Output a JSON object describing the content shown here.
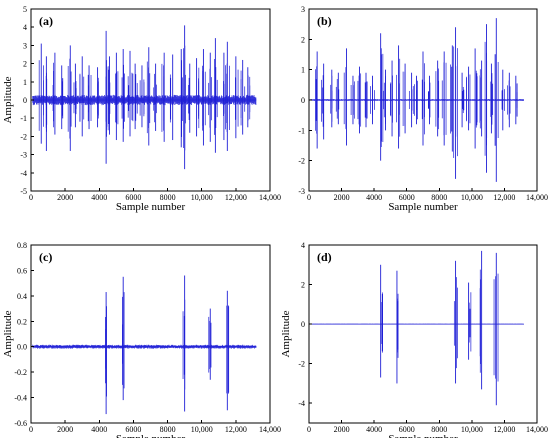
{
  "colors": {
    "signal": "#1f1fd6",
    "axis": "#000000",
    "background": "#ffffff"
  },
  "chart_data": [
    {
      "type": "line",
      "panel_label": "(a)",
      "xlabel": "Sample number",
      "ylabel": "Amplitude",
      "xlim": [
        0,
        14000
      ],
      "ylim": [
        -5,
        5
      ],
      "xticks": [
        0,
        2000,
        4000,
        6000,
        8000,
        10000,
        12000,
        14000
      ],
      "xtick_labels": [
        "0",
        "2000",
        "4000",
        "6000",
        "8000",
        "10,000",
        "12,000",
        "14,000"
      ],
      "yticks": [
        -5,
        -4,
        -3,
        -2,
        -1,
        0,
        1,
        2,
        3,
        4,
        5
      ],
      "ytick_labels": [
        "-5",
        "-4",
        "-3",
        "-2",
        "-1",
        "0",
        "1",
        "2",
        "3",
        "4",
        "5"
      ],
      "baseline_noise": 0.28,
      "series": [
        {
          "values_x": [
            600,
            900,
            1400,
            1800,
            2300,
            2600,
            3000,
            3400,
            3900,
            4400,
            4600,
            5000,
            5400,
            5800,
            6100,
            6500,
            6900,
            7300,
            7800,
            8300,
            8800,
            9000,
            9300,
            9700,
            10100,
            10500,
            10800,
            11300,
            11500,
            12000,
            12400,
            12700
          ],
          "values_pos": [
            3.1,
            2.4,
            2.6,
            1.9,
            3.0,
            2.0,
            2.4,
            1.9,
            1.8,
            3.8,
            2.4,
            2.6,
            2.8,
            2.7,
            2.0,
            1.9,
            2.9,
            2.0,
            2.6,
            2.5,
            2.8,
            4.1,
            2.0,
            2.3,
            2.8,
            2.6,
            3.4,
            2.6,
            3.2,
            2.4,
            2.2,
            1.8
          ],
          "values_neg": [
            -2.4,
            -2.8,
            -1.9,
            -1.6,
            -2.8,
            -1.5,
            -2.0,
            -1.6,
            -1.5,
            -3.5,
            -1.9,
            -2.2,
            -2.3,
            -2.0,
            -1.6,
            -1.5,
            -2.5,
            -1.7,
            -2.3,
            -2.2,
            -2.6,
            -3.8,
            -1.8,
            -2.0,
            -2.5,
            -2.3,
            -2.9,
            -2.2,
            -2.8,
            -2.1,
            -1.9,
            -1.5
          ]
        }
      ]
    },
    {
      "type": "line",
      "panel_label": "(b)",
      "xlabel": "Sample number",
      "ylabel": "",
      "xlim": [
        0,
        14000
      ],
      "ylim": [
        -3,
        3
      ],
      "xticks": [
        0,
        2000,
        4000,
        6000,
        8000,
        10000,
        12000,
        14000
      ],
      "xtick_labels": [
        "0",
        "2000",
        "4000",
        "6000",
        "8000",
        "10,000",
        "12,000",
        "14,000"
      ],
      "yticks": [
        -3,
        -2,
        -1,
        0,
        1,
        2,
        3
      ],
      "ytick_labels": [
        "-3",
        "-2",
        "-1",
        "0",
        "1",
        "2",
        "3"
      ],
      "baseline_noise": 0.03,
      "series": [
        {
          "values_x": [
            500,
            900,
            1400,
            1800,
            2300,
            2700,
            3100,
            3500,
            3900,
            4400,
            4700,
            5100,
            5500,
            5900,
            6300,
            6600,
            7000,
            7400,
            7900,
            8300,
            8800,
            9000,
            9400,
            9800,
            10200,
            10600,
            10900,
            11200,
            11500,
            11900,
            12300,
            12700
          ],
          "values_pos": [
            1.6,
            1.2,
            1.0,
            0.9,
            1.7,
            0.8,
            1.1,
            0.9,
            0.8,
            2.2,
            1.0,
            1.3,
            1.8,
            1.2,
            0.9,
            0.8,
            1.6,
            0.8,
            1.3,
            1.6,
            1.8,
            2.4,
            0.9,
            1.1,
            1.7,
            1.3,
            2.5,
            1.2,
            2.7,
            1.0,
            0.9,
            0.8
          ],
          "values_neg": [
            -1.6,
            -1.3,
            -0.9,
            -0.8,
            -1.5,
            -0.8,
            -1.1,
            -0.9,
            -0.8,
            -2.0,
            -1.0,
            -1.2,
            -1.6,
            -1.1,
            -0.9,
            -0.8,
            -1.5,
            -0.8,
            -1.2,
            -1.5,
            -1.7,
            -2.6,
            -0.9,
            -1.0,
            -1.6,
            -1.2,
            -2.4,
            -1.1,
            -2.7,
            -1.0,
            -0.9,
            -0.8
          ]
        }
      ]
    },
    {
      "type": "line",
      "panel_label": "(c)",
      "xlabel": "Sample number",
      "ylabel": "Amplitude",
      "xlim": [
        0,
        14000
      ],
      "ylim": [
        -0.6,
        0.8
      ],
      "xticks": [
        0,
        2000,
        4000,
        6000,
        8000,
        10000,
        12000,
        14000
      ],
      "xtick_labels": [
        "0",
        "2000",
        "4000",
        "6000",
        "8000",
        "10,000",
        "12,000",
        "14,000"
      ],
      "yticks": [
        -0.6,
        -0.4,
        -0.2,
        0.0,
        0.2,
        0.4,
        0.6,
        0.8
      ],
      "ytick_labels": [
        "-0.6",
        "-0.4",
        "-0.2",
        "0.0",
        "0.2",
        "0.4",
        "0.6",
        "0.8"
      ],
      "baseline_noise": 0.015,
      "series": [
        {
          "values_x": [
            4400,
            5400,
            9000,
            10500,
            11500
          ],
          "values_pos": [
            0.43,
            0.55,
            0.56,
            0.3,
            0.44
          ],
          "values_neg": [
            -0.53,
            -0.42,
            -0.51,
            -0.26,
            -0.5
          ]
        }
      ]
    },
    {
      "type": "line",
      "panel_label": "(d)",
      "xlabel": "Sample number",
      "ylabel": "Amplitude",
      "xlim": [
        0,
        14000
      ],
      "ylim": [
        -5,
        4
      ],
      "xticks": [
        0,
        2000,
        4000,
        6000,
        8000,
        10000,
        12000,
        14000
      ],
      "xtick_labels": [
        "0",
        "2000",
        "4000",
        "6000",
        "8000",
        "10,000",
        "12,000",
        "14,000"
      ],
      "yticks": [
        -4,
        -2,
        0,
        2,
        4
      ],
      "ytick_labels": [
        "-4",
        "-2",
        "0",
        "2",
        "4"
      ],
      "baseline_noise": 0.02,
      "series": [
        {
          "values_x": [
            4400,
            5400,
            9000,
            9800,
            10600,
            11500
          ],
          "values_pos": [
            3.0,
            2.7,
            3.2,
            2.1,
            3.7,
            3.6
          ],
          "values_neg": [
            -2.7,
            -3.0,
            -3.0,
            -1.8,
            -3.3,
            -4.1
          ]
        }
      ]
    }
  ]
}
